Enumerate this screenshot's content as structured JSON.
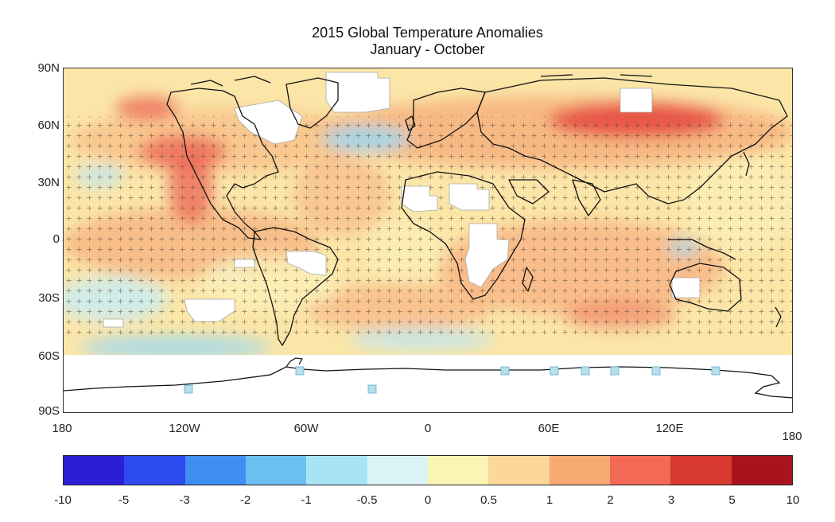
{
  "title": "2015 Global Temperature Anomalies",
  "subtitle": "January - October",
  "map": {
    "lat_labels": [
      "90N",
      "60N",
      "30N",
      "0",
      "30S",
      "60S",
      "90S"
    ],
    "lon_labels": [
      "180",
      "120W",
      "60W",
      "0",
      "60E",
      "120E",
      "180"
    ],
    "ocean_base_color": "#fbe6a8"
  },
  "legend": {
    "labels": [
      "-10",
      "-5",
      "-3",
      "-2",
      "-1",
      "-0.5",
      "0",
      "0.5",
      "1",
      "2",
      "3",
      "5",
      "10"
    ],
    "colors": [
      "#2b1fd6",
      "#2e4bf0",
      "#3f8ef2",
      "#6bc0f2",
      "#a8e4f6",
      "#dcf3f6",
      "#fbf4b4",
      "#fbd79a",
      "#f8aa73",
      "#f26a55",
      "#d83a30",
      "#a8141e"
    ]
  }
}
